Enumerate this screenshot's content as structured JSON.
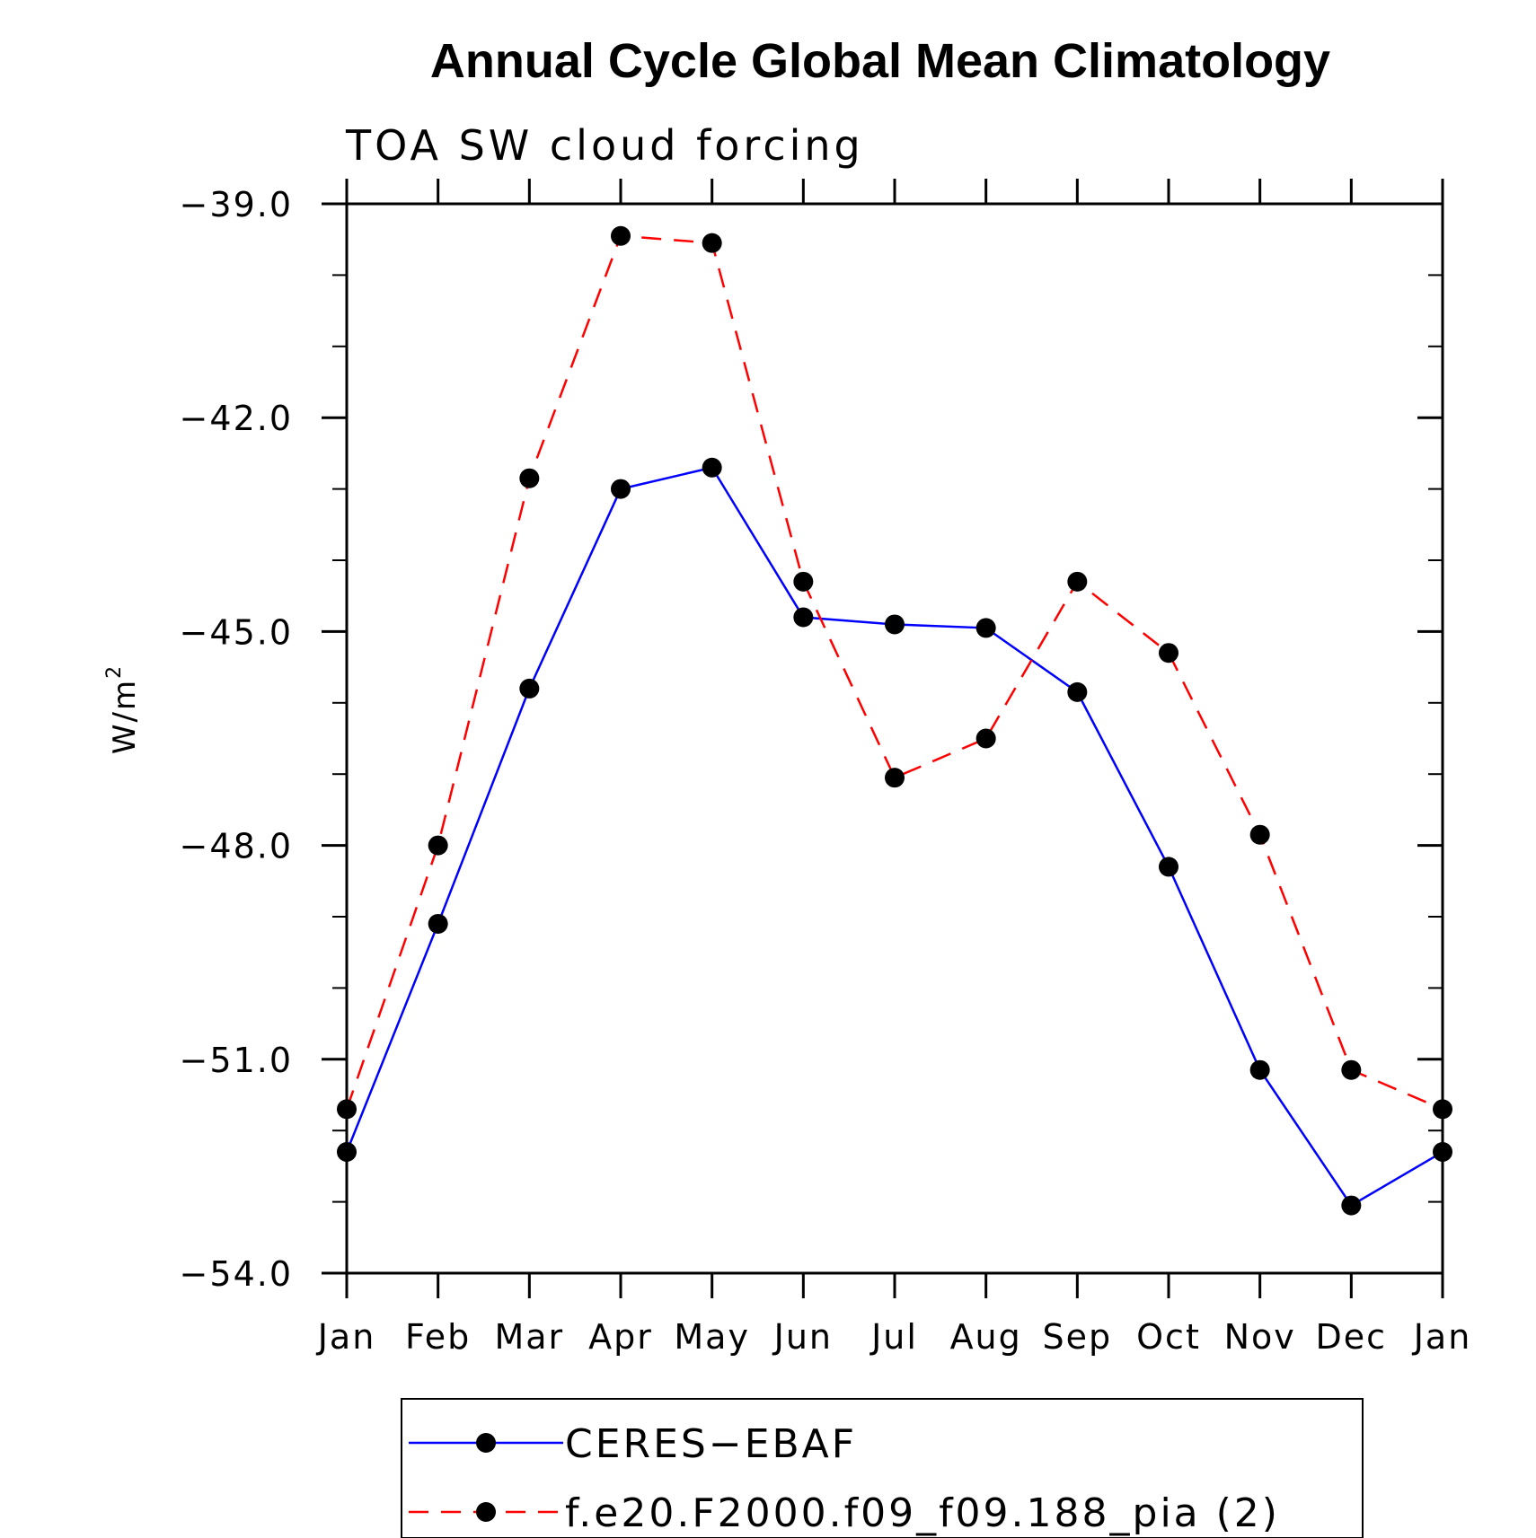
{
  "chart_data": {
    "type": "line",
    "title": "Annual Cycle Global Mean Climatology",
    "subtitle": "TOA SW cloud forcing",
    "ylabel": "W/m",
    "ylabel_superscript": "2",
    "xlabel": "",
    "categories": [
      "Jan",
      "Feb",
      "Mar",
      "Apr",
      "May",
      "Jun",
      "Jul",
      "Aug",
      "Sep",
      "Oct",
      "Nov",
      "Dec",
      "Jan"
    ],
    "ylim": [
      -54.0,
      -39.0
    ],
    "yticks": [
      "-39.0",
      "-42.0",
      "-45.0",
      "-48.0",
      "-51.0",
      "-54.0"
    ],
    "series": [
      {
        "name": "CERES-EBAF",
        "color": "#0000ff",
        "dashed": false,
        "values": [
          -52.3,
          -49.1,
          -45.8,
          -43.0,
          -42.7,
          -44.8,
          -44.9,
          -44.95,
          -45.85,
          -48.3,
          -51.15,
          -53.05,
          -52.3
        ]
      },
      {
        "name": "f.e20.F2000.f09_f09.188_pia (2)",
        "color": "#ff0000",
        "dashed": true,
        "values": [
          -51.7,
          -48.0,
          -42.85,
          -39.45,
          -39.55,
          -44.3,
          -47.05,
          -46.5,
          -44.3,
          -45.3,
          -47.85,
          -51.15,
          -51.7
        ]
      }
    ],
    "legend_position": "bottom"
  }
}
